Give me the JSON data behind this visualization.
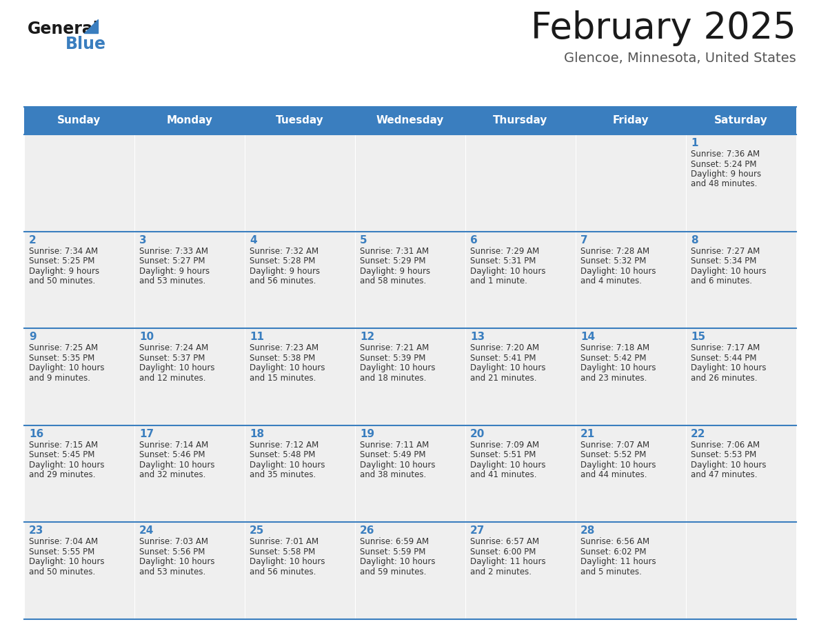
{
  "title": "February 2025",
  "subtitle": "Glencoe, Minnesota, United States",
  "header_color": "#3a7ebf",
  "header_text_color": "#ffffff",
  "cell_bg_color": "#efefef",
  "cell_white": "#ffffff",
  "day_number_color": "#3a7ebf",
  "info_text_color": "#333333",
  "line_color": "#3a7ebf",
  "days_of_week": [
    "Sunday",
    "Monday",
    "Tuesday",
    "Wednesday",
    "Thursday",
    "Friday",
    "Saturday"
  ],
  "logo_general_color": "#1a1a1a",
  "logo_blue_color": "#3a7ebf",
  "title_color": "#1a1a1a",
  "subtitle_color": "#555555",
  "calendar_data": [
    [
      null,
      null,
      null,
      null,
      null,
      null,
      {
        "day": 1,
        "sunrise": "7:36 AM",
        "sunset": "5:24 PM",
        "daylight": "9 hours\nand 48 minutes."
      }
    ],
    [
      {
        "day": 2,
        "sunrise": "7:34 AM",
        "sunset": "5:25 PM",
        "daylight": "9 hours\nand 50 minutes."
      },
      {
        "day": 3,
        "sunrise": "7:33 AM",
        "sunset": "5:27 PM",
        "daylight": "9 hours\nand 53 minutes."
      },
      {
        "day": 4,
        "sunrise": "7:32 AM",
        "sunset": "5:28 PM",
        "daylight": "9 hours\nand 56 minutes."
      },
      {
        "day": 5,
        "sunrise": "7:31 AM",
        "sunset": "5:29 PM",
        "daylight": "9 hours\nand 58 minutes."
      },
      {
        "day": 6,
        "sunrise": "7:29 AM",
        "sunset": "5:31 PM",
        "daylight": "10 hours\nand 1 minute."
      },
      {
        "day": 7,
        "sunrise": "7:28 AM",
        "sunset": "5:32 PM",
        "daylight": "10 hours\nand 4 minutes."
      },
      {
        "day": 8,
        "sunrise": "7:27 AM",
        "sunset": "5:34 PM",
        "daylight": "10 hours\nand 6 minutes."
      }
    ],
    [
      {
        "day": 9,
        "sunrise": "7:25 AM",
        "sunset": "5:35 PM",
        "daylight": "10 hours\nand 9 minutes."
      },
      {
        "day": 10,
        "sunrise": "7:24 AM",
        "sunset": "5:37 PM",
        "daylight": "10 hours\nand 12 minutes."
      },
      {
        "day": 11,
        "sunrise": "7:23 AM",
        "sunset": "5:38 PM",
        "daylight": "10 hours\nand 15 minutes."
      },
      {
        "day": 12,
        "sunrise": "7:21 AM",
        "sunset": "5:39 PM",
        "daylight": "10 hours\nand 18 minutes."
      },
      {
        "day": 13,
        "sunrise": "7:20 AM",
        "sunset": "5:41 PM",
        "daylight": "10 hours\nand 21 minutes."
      },
      {
        "day": 14,
        "sunrise": "7:18 AM",
        "sunset": "5:42 PM",
        "daylight": "10 hours\nand 23 minutes."
      },
      {
        "day": 15,
        "sunrise": "7:17 AM",
        "sunset": "5:44 PM",
        "daylight": "10 hours\nand 26 minutes."
      }
    ],
    [
      {
        "day": 16,
        "sunrise": "7:15 AM",
        "sunset": "5:45 PM",
        "daylight": "10 hours\nand 29 minutes."
      },
      {
        "day": 17,
        "sunrise": "7:14 AM",
        "sunset": "5:46 PM",
        "daylight": "10 hours\nand 32 minutes."
      },
      {
        "day": 18,
        "sunrise": "7:12 AM",
        "sunset": "5:48 PM",
        "daylight": "10 hours\nand 35 minutes."
      },
      {
        "day": 19,
        "sunrise": "7:11 AM",
        "sunset": "5:49 PM",
        "daylight": "10 hours\nand 38 minutes."
      },
      {
        "day": 20,
        "sunrise": "7:09 AM",
        "sunset": "5:51 PM",
        "daylight": "10 hours\nand 41 minutes."
      },
      {
        "day": 21,
        "sunrise": "7:07 AM",
        "sunset": "5:52 PM",
        "daylight": "10 hours\nand 44 minutes."
      },
      {
        "day": 22,
        "sunrise": "7:06 AM",
        "sunset": "5:53 PM",
        "daylight": "10 hours\nand 47 minutes."
      }
    ],
    [
      {
        "day": 23,
        "sunrise": "7:04 AM",
        "sunset": "5:55 PM",
        "daylight": "10 hours\nand 50 minutes."
      },
      {
        "day": 24,
        "sunrise": "7:03 AM",
        "sunset": "5:56 PM",
        "daylight": "10 hours\nand 53 minutes."
      },
      {
        "day": 25,
        "sunrise": "7:01 AM",
        "sunset": "5:58 PM",
        "daylight": "10 hours\nand 56 minutes."
      },
      {
        "day": 26,
        "sunrise": "6:59 AM",
        "sunset": "5:59 PM",
        "daylight": "10 hours\nand 59 minutes."
      },
      {
        "day": 27,
        "sunrise": "6:57 AM",
        "sunset": "6:00 PM",
        "daylight": "11 hours\nand 2 minutes."
      },
      {
        "day": 28,
        "sunrise": "6:56 AM",
        "sunset": "6:02 PM",
        "daylight": "11 hours\nand 5 minutes."
      },
      null
    ]
  ]
}
